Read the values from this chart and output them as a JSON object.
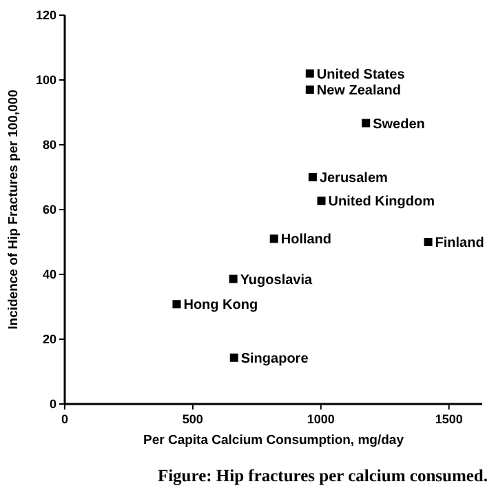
{
  "chart_data": {
    "type": "scatter",
    "title": "Figure:  Hip fractures per calcium consumed.",
    "xlabel": "Per Capita Calcium Consumption, mg/day",
    "ylabel": "Incidence of Hip Fractures per 100,000",
    "x": [
      957,
      957,
      1176,
      968,
      1002,
      817,
      1419,
      658,
      437,
      661
    ],
    "values": [
      102,
      97,
      86.7,
      70,
      62.7,
      51,
      50,
      38.6,
      30.8,
      14.3
    ],
    "color": "#000000",
    "marker": "square",
    "annotations": [
      {
        "text": "United States",
        "x": 957,
        "y": 102
      },
      {
        "text": "New Zealand",
        "x": 957,
        "y": 97
      },
      {
        "text": "Sweden",
        "x": 1176,
        "y": 86.7
      },
      {
        "text": "Jerusalem",
        "x": 968,
        "y": 70
      },
      {
        "text": "United Kingdom",
        "x": 1002,
        "y": 62.7
      },
      {
        "text": "Holland",
        "x": 817,
        "y": 51
      },
      {
        "text": "Finland",
        "x": 1419,
        "y": 50
      },
      {
        "text": "Yugoslavia",
        "x": 658,
        "y": 38.6
      },
      {
        "text": "Hong Kong",
        "x": 437,
        "y": 30.8
      },
      {
        "text": "Singapore",
        "x": 661,
        "y": 14.3
      }
    ],
    "xlim": [
      0,
      1630
    ],
    "xticks": [
      0,
      500,
      1000,
      1500
    ],
    "ylim": [
      0,
      120
    ],
    "yticks": [
      0,
      20,
      40,
      60,
      80,
      100,
      120
    ],
    "grid": false
  }
}
